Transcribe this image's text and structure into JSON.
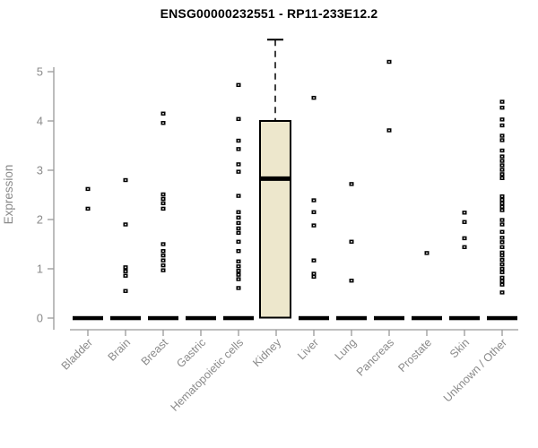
{
  "chart_data": {
    "type": "boxplot",
    "title": "ENSG00000232551 - RP11-233E12.2",
    "xlabel": "",
    "ylabel": "Expression",
    "ylim": [
      0,
      5.8
    ],
    "yticks": [
      0,
      1,
      2,
      3,
      4,
      5
    ],
    "grid": false,
    "legend": false,
    "marker": "open-square",
    "colors": {
      "box_fill": "#EDE7CC",
      "box_border": "#000000",
      "median_line": "#000000",
      "point": "#000000",
      "axis": "#999999",
      "tick_label": "#8A8A8A",
      "title": "#000000"
    },
    "categories": [
      "Bladder",
      "Brain",
      "Breast",
      "Gastric",
      "Hematopoietic cells",
      "Kidney",
      "Liver",
      "Lung",
      "Pancreas",
      "Prostate",
      "Skin",
      "Unknown / Other"
    ],
    "groups": [
      {
        "label": "Bladder",
        "median": 0,
        "points": [
          2.62,
          2.22
        ]
      },
      {
        "label": "Brain",
        "median": 0,
        "points": [
          2.8,
          1.9,
          1.03,
          0.95,
          0.86,
          0.55
        ]
      },
      {
        "label": "Breast",
        "median": 0,
        "points": [
          4.15,
          3.96,
          2.51,
          2.42,
          2.33,
          2.22,
          1.5,
          1.36,
          1.27,
          1.17,
          1.07,
          0.97
        ]
      },
      {
        "label": "Gastric",
        "median": 0,
        "points": []
      },
      {
        "label": "Hematopoietic cells",
        "median": 0,
        "points": [
          4.73,
          4.04,
          3.6,
          3.43,
          3.12,
          2.97,
          2.48,
          2.15,
          2.04,
          1.93,
          1.82,
          1.73,
          1.55,
          1.36,
          1.15,
          1.05,
          0.96,
          0.88,
          0.79,
          0.61
        ]
      },
      {
        "label": "Kidney",
        "box": {
          "q1": 0,
          "median": 2.83,
          "q3": 4.0,
          "whisker_high": 5.65
        },
        "points": []
      },
      {
        "label": "Liver",
        "median": 0,
        "points": [
          4.47,
          2.39,
          2.15,
          1.88,
          1.17,
          0.9,
          0.84
        ]
      },
      {
        "label": "Lung",
        "median": 0,
        "points": [
          2.72,
          1.55,
          0.76
        ]
      },
      {
        "label": "Pancreas",
        "median": 0,
        "points": [
          5.2,
          3.81
        ]
      },
      {
        "label": "Prostate",
        "median": 0,
        "points": [
          1.32
        ]
      },
      {
        "label": "Skin",
        "median": 0,
        "points": [
          2.14,
          1.95,
          1.62,
          1.44
        ]
      },
      {
        "label": "Unknown / Other",
        "median": 0,
        "points": [
          4.39,
          4.27,
          4.03,
          3.91,
          3.7,
          3.61,
          3.4,
          3.28,
          3.19,
          3.1,
          3.01,
          2.92,
          2.84,
          2.47,
          2.4,
          2.33,
          2.26,
          2.19,
          1.99,
          1.9,
          1.75,
          1.63,
          1.54,
          1.44,
          1.33,
          1.27,
          1.18,
          1.09,
          1.0,
          0.93,
          0.82,
          0.75,
          0.68,
          0.52
        ]
      }
    ]
  }
}
